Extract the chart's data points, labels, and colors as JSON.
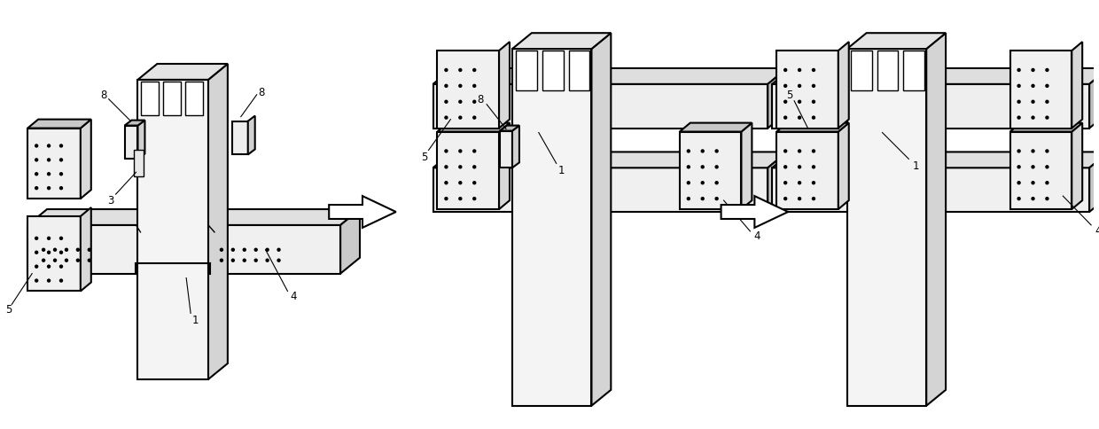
{
  "background_color": "#ffffff",
  "lc": "#000000",
  "lw": 1.5,
  "fc_white": "#ffffff",
  "fc_light": "#f0f0f0",
  "fc_mid": "#d8d8d8",
  "fc_dark": "#b8b8b8",
  "fc_col_front": "#f2f2f2",
  "fc_col_right": "#d0d0d0",
  "fc_col_top": "#e0e0e0"
}
